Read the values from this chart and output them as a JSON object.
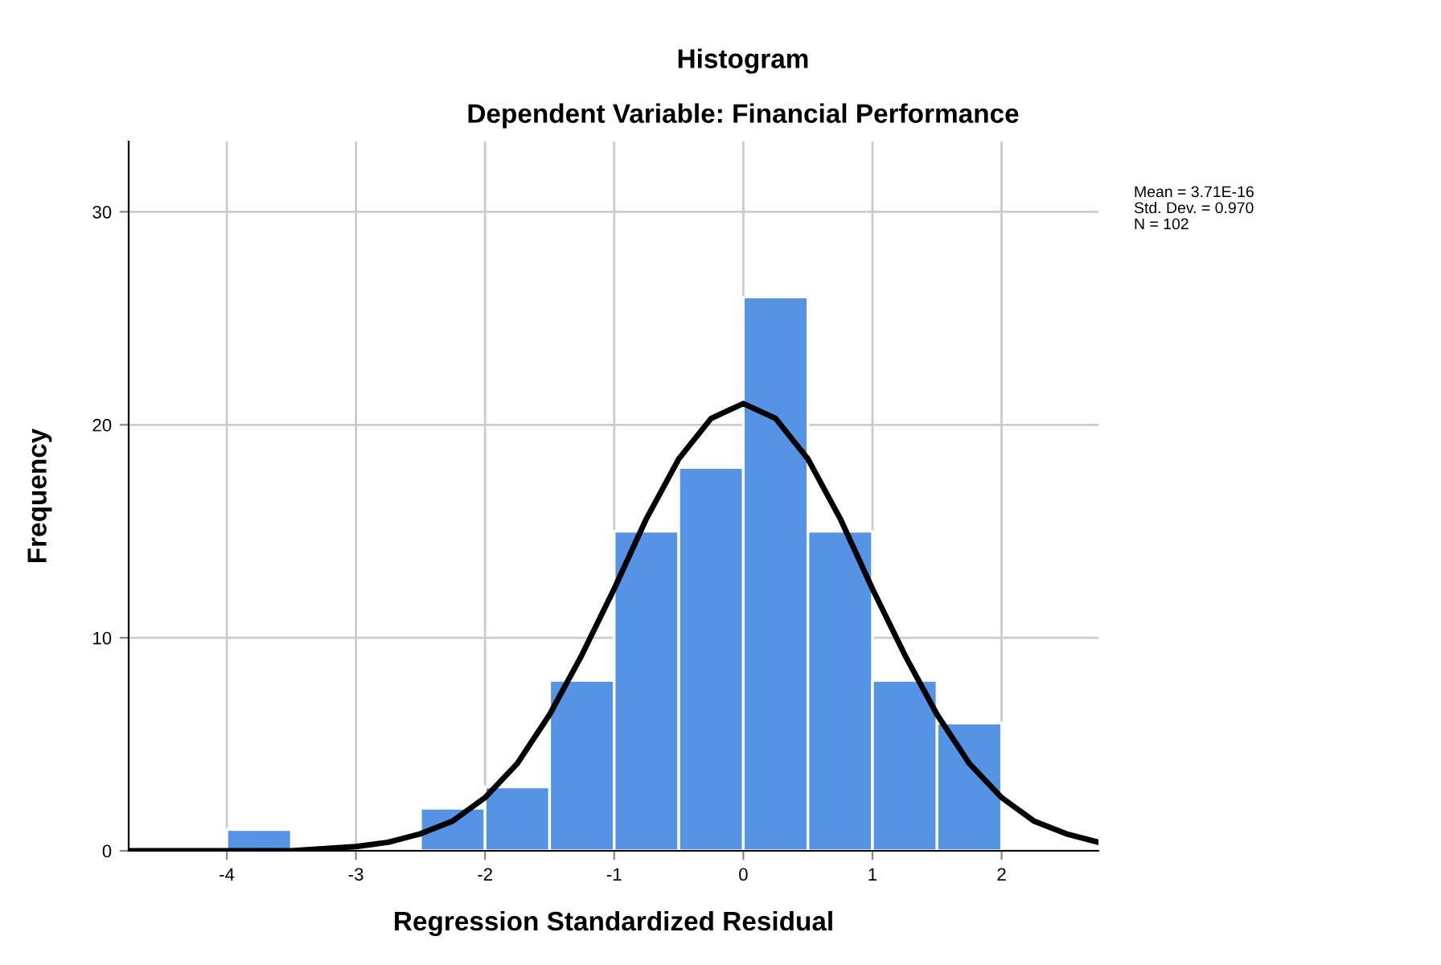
{
  "chart_data": {
    "type": "histogram",
    "title": "Histogram",
    "subtitle": "Dependent Variable: Financial Performance",
    "xlabel": "Regression Standardized Residual",
    "ylabel": "Frequency",
    "xlim": [
      -4.76,
      2.75
    ],
    "ylim": [
      0,
      33.3
    ],
    "xticks": [
      -4,
      -3,
      -2,
      -1,
      0,
      1,
      2
    ],
    "yticks": [
      0,
      10,
      20,
      30
    ],
    "grid": true,
    "annotations": [
      "Mean = 3.71E-16",
      "Std. Dev. = 0.970",
      "N = 102"
    ],
    "series": [
      {
        "color": "#5593e4",
        "bins": [
          -4,
          -3.5,
          -3,
          -2.5,
          -2,
          -1.5,
          -1,
          -0.5,
          0,
          0.5,
          1,
          1.5,
          2
        ],
        "values": [
          1,
          0,
          0,
          2,
          3,
          8,
          15,
          18,
          26,
          15,
          8,
          6
        ]
      },
      {
        "type": "line",
        "color": "#000000",
        "x": [
          -4.75,
          -4.5,
          -4,
          -3.5,
          -3,
          -2.75,
          -2.5,
          -2.25,
          -2,
          -1.75,
          -1.5,
          -1.25,
          -1,
          -0.75,
          -0.5,
          -0.25,
          0,
          0.25,
          0.5,
          0.75,
          1,
          1.25,
          1.5,
          1.75,
          2,
          2.25,
          2.5,
          2.75
        ],
        "values": [
          0,
          0,
          0,
          0,
          0.2,
          0.4,
          0.8,
          1.4,
          2.5,
          4.1,
          6.4,
          9.2,
          12.3,
          15.6,
          18.4,
          20.3,
          21,
          20.3,
          18.4,
          15.6,
          12.3,
          9.2,
          6.4,
          4.1,
          2.5,
          1.4,
          0.8,
          0.4
        ]
      }
    ]
  }
}
